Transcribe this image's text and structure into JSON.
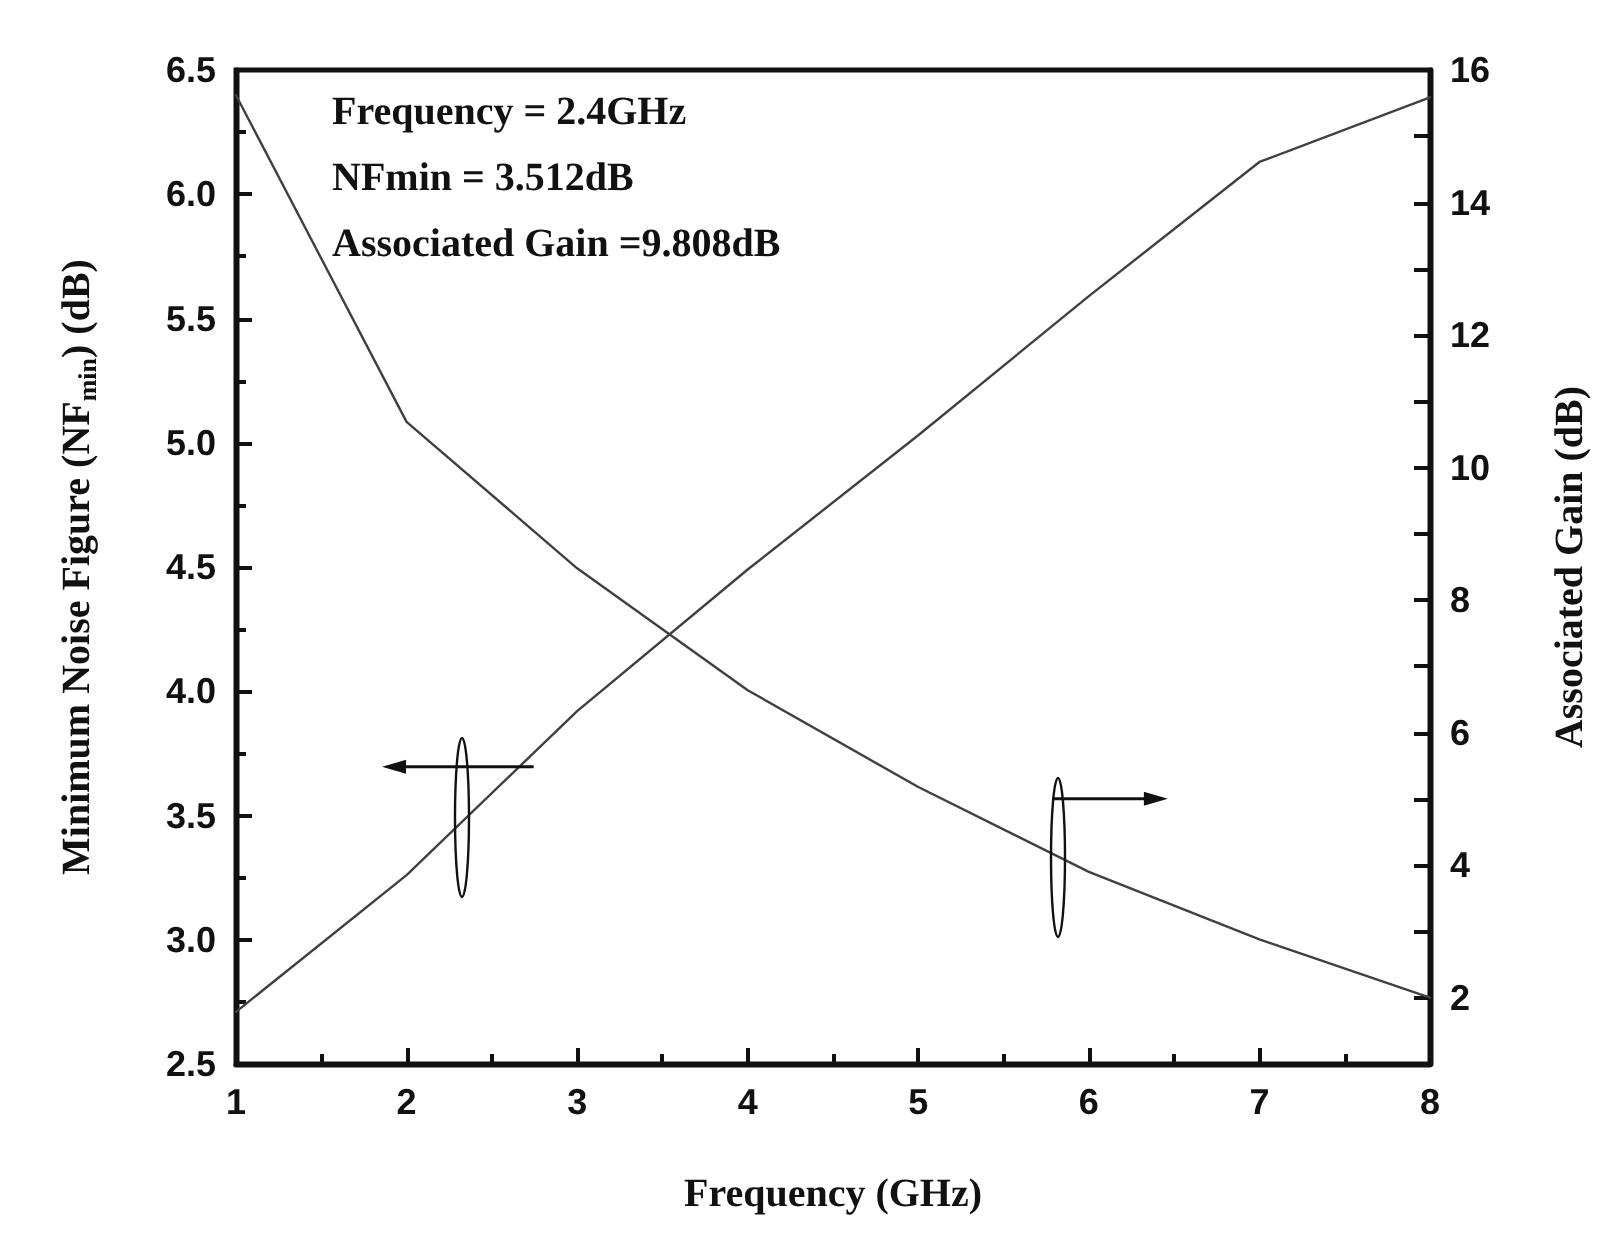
{
  "chart_data": {
    "type": "line",
    "xlabel": "Frequency (GHz)",
    "ylabel": "Minimum Noise Figure (NF$_{min}$) (dB)",
    "y2label": "Associated Gain (dB)",
    "annotations": [
      "Frequency = 2.4GHz",
      "NFmin = 3.512dB",
      "Associated Gain =9.808dB"
    ],
    "x": [
      1,
      2,
      3,
      4,
      5,
      6,
      7,
      8
    ],
    "xlim": [
      1,
      8
    ],
    "xticks": [
      1,
      2,
      3,
      4,
      5,
      6,
      7,
      8
    ],
    "ylim": [
      2.5,
      6.5
    ],
    "yticks": [
      2.5,
      {
        "value": 3,
        "label": "3.0"
      },
      3.5,
      {
        "value": 4,
        "label": "4.0"
      },
      4.5,
      {
        "value": 5,
        "label": "5.0"
      },
      5.5,
      {
        "value": 6,
        "label": "6.0"
      },
      6.5
    ],
    "y2lim": [
      1,
      16
    ],
    "y2ticks": [
      2,
      4,
      6,
      8,
      10,
      12,
      14,
      16
    ],
    "series": [
      {
        "color": "#404040",
        "values": [
          2.71,
          3.26,
          3.92,
          4.49,
          5.03,
          5.59,
          6.13,
          6.39
        ]
      },
      {
        "color": "#404040",
        "axis": "y2",
        "values": [
          15.62,
          10.69,
          8.48,
          6.64,
          5.18,
          3.9,
          2.88,
          2.0
        ]
      }
    ],
    "grid": false,
    "marker": "none",
    "line_style": "solid"
  }
}
